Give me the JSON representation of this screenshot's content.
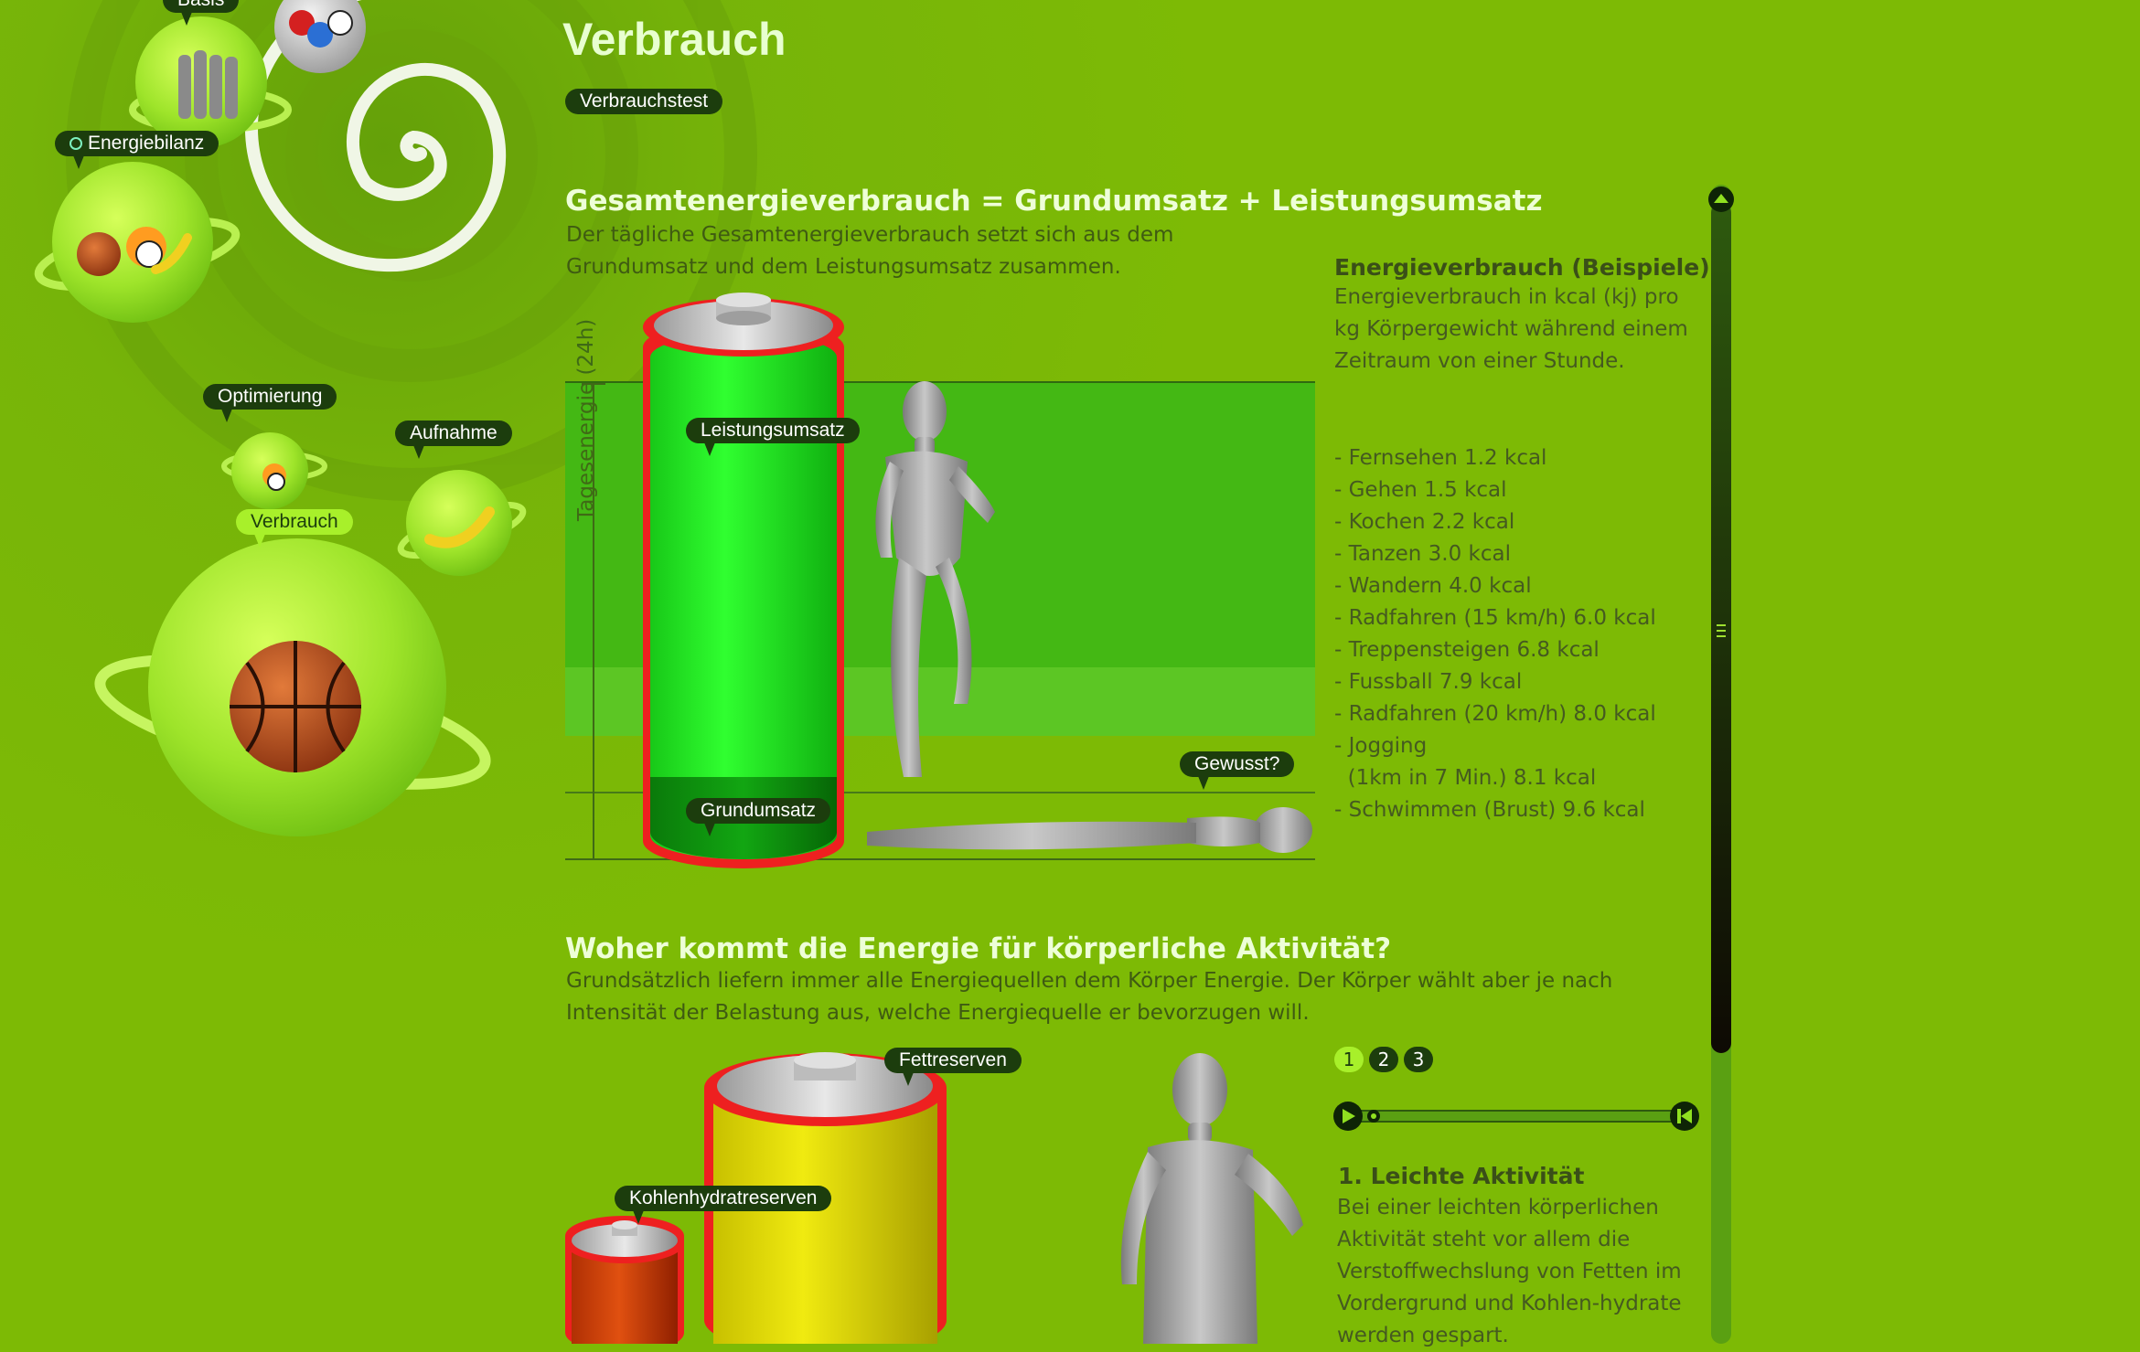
{
  "page": {
    "title": "Verbrauch",
    "test_button": "Verbrauchstest"
  },
  "nav": {
    "basis": "Basis",
    "energiebilanz": "Energiebilanz",
    "optimierung": "Optimierung",
    "aufnahme": "Aufnahme",
    "verbrauch": "Verbrauch"
  },
  "section1": {
    "title": "Gesamtenergieverbrauch = Grundumsatz + Leistungsumsatz",
    "text": "Der tägliche Gesamtenergieverbrauch setzt sich aus dem Grundumsatz und dem Leistungsumsatz zusammen.",
    "axis_label": "Tagesenergie (24h)",
    "label_leistung": "Leistungsumsatz",
    "label_grund": "Grundumsatz",
    "label_gewusst": "Gewusst?"
  },
  "sidebar": {
    "heading": "Energieverbrauch (Beispiele)",
    "intro": "Energieverbrauch in kcal (kj) pro kg Körpergewicht während einem Zeitraum von einer Stunde.",
    "items": [
      "- Fernsehen 1.2 kcal",
      "- Gehen 1.5 kcal",
      "- Kochen 2.2 kcal",
      "- Tanzen 3.0 kcal",
      "- Wandern 4.0 kcal",
      "- Radfahren (15 km/h) 6.0 kcal",
      "- Treppensteigen 6.8 kcal",
      "- Fussball 7.9 kcal",
      "- Radfahren (20 km/h) 8.0 kcal",
      "- Jogging",
      "  (1km in 7 Min.) 8.1 kcal",
      "- Schwimmen (Brust) 9.6 kcal"
    ]
  },
  "section2": {
    "title": "Woher kommt die Energie für körperliche Aktivität?",
    "text": "Grundsätzlich liefern immer alle Energiequellen dem Körper Energie. Der Körper wählt aber je nach Intensität der Belastung aus, welche Energiequelle er bevorzugen will.",
    "label_fett": "Fettreserven",
    "label_kohlen": "Kohlenhydratreserven",
    "pages": [
      "1",
      "2",
      "3"
    ],
    "active_page": "1",
    "player_progress": 0,
    "step_title": "1. Leichte Aktivität",
    "step_text": "Bei einer leichten körperlichen Aktivität steht vor allem die Verstoffwechslung von Fetten im Vordergrund und Kohlen-hydrate werden gespart."
  },
  "colors": {
    "background": "#7dba05",
    "accent": "#a8f02a",
    "label_dark": "#1c3d0d",
    "battery_green": "#1ee81e",
    "battery_red": "#ee2020",
    "battery_yellow": "#e6e000"
  }
}
